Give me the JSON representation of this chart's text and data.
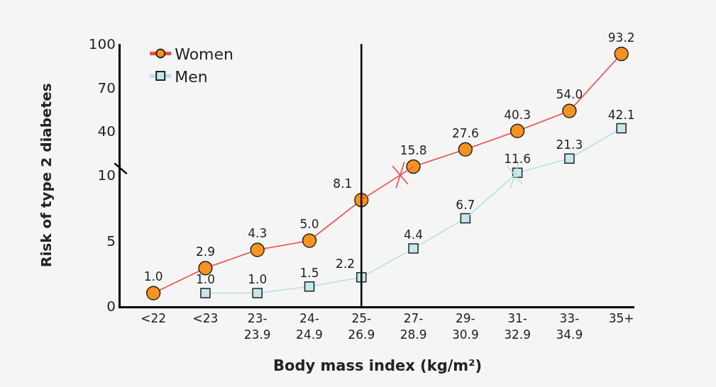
{
  "chart_data": [
    {
      "type": "line",
      "categories": [
        "<22",
        "<23",
        "23-\n23.9",
        "24-\n24.9",
        "25-\n26.9",
        "27-\n28.9",
        "29-\n30.9",
        "31-\n32.9",
        "33-\n34.9",
        "35+"
      ],
      "series": [
        {
          "name": "Women",
          "color": "#f04848",
          "colors": [
            "#f7931e",
            "#f7931e",
            "#f7931e",
            "#f7931e",
            "#f7931e",
            "#f7931e",
            "#f7931e",
            "#f7931e",
            "#f7931e",
            "#f7931e"
          ],
          "marker": "circle",
          "values": [
            null,
            null,
            null,
            null,
            null,
            15.8,
            27.6,
            40.3,
            54.0,
            93.2
          ],
          "value_labels": [
            null,
            null,
            null,
            null,
            null,
            "15.8",
            "27.6",
            "40.3",
            "54.0",
            "93.2"
          ]
        },
        {
          "name": "Men",
          "color": "#b8e0e4",
          "colors": [
            "#c6e8ec",
            "#c6e8ec",
            "#c6e8ec",
            "#c6e8ec",
            "#c6e8ec",
            "#c6e8ec",
            "#c6e8ec",
            "#c6e8ec",
            "#c6e8ec",
            "#c6e8ec"
          ],
          "marker": "square",
          "values": [
            null,
            null,
            null,
            null,
            null,
            null,
            null,
            11.6,
            21.3,
            42.1
          ],
          "value_labels": [
            null,
            null,
            null,
            null,
            null,
            null,
            null,
            "11.6",
            "21.3",
            "42.1"
          ]
        }
      ],
      "ylim": [
        10,
        100
      ],
      "yticks": [
        40,
        70,
        100
      ],
      "tick_labels": "y",
      "ref_lines": [
        {
          "axis": "x",
          "value": "25-\n26.9",
          "color": "#000000"
        }
      ],
      "grid": false,
      "legend": "top left"
    },
    {
      "type": "line",
      "xlabel": "Body mass index (kg/m²)",
      "ylabel": "Risk of type 2 diabetes",
      "categories": [
        "<22",
        "<23",
        "23-\n23.9",
        "24-\n24.9",
        "25-\n26.9",
        "27-\n28.9",
        "29-\n30.9",
        "31-\n32.9",
        "33-\n34.9",
        "35+"
      ],
      "series": [
        {
          "color": "#f04848",
          "colors": [
            "#f7931e",
            "#f7931e",
            "#f7931e",
            "#f7931e",
            "#f7931e",
            "#f7931e",
            "#f7931e",
            "#f7931e",
            "#f7931e",
            "#f7931e"
          ],
          "marker": "circle",
          "values": [
            1.0,
            2.9,
            4.3,
            5.0,
            8.1,
            null,
            null,
            null,
            null,
            null
          ],
          "value_labels": [
            "1.0",
            "2.9",
            "4.3",
            "5.0",
            "8.1",
            null,
            null,
            null,
            null,
            null
          ]
        },
        {
          "color": "#b8e0e4",
          "colors": [
            "#c6e8ec",
            "#c6e8ec",
            "#c6e8ec",
            "#c6e8ec",
            "#c6e8ec",
            "#c6e8ec",
            "#c6e8ec",
            "#c6e8ec",
            "#c6e8ec",
            "#c6e8ec"
          ],
          "marker": "square",
          "values": [
            null,
            1.0,
            1.0,
            1.5,
            2.2,
            4.4,
            6.7,
            null,
            null,
            null
          ],
          "value_labels": [
            null,
            "1.0",
            "1.0",
            "1.5",
            "2.2",
            "4.4",
            "6.7",
            null,
            null,
            null
          ]
        }
      ],
      "ylim": [
        0,
        10
      ],
      "yticks": [
        0,
        5,
        10
      ],
      "ref_lines": [
        {
          "axis": "x",
          "value": "25-\n26.9",
          "color": "#000000"
        }
      ],
      "grid": false
    }
  ]
}
